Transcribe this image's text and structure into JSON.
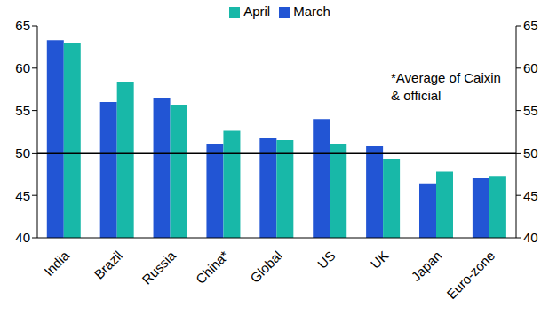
{
  "chart_data": {
    "type": "bar",
    "categories": [
      "India",
      "Brazil",
      "Russia",
      "China*",
      "Global",
      "US",
      "UK",
      "Japan",
      "Euro-zone"
    ],
    "series": [
      {
        "name": "March",
        "color": "#2255d4",
        "values": [
          63.3,
          56.0,
          56.5,
          51.1,
          51.8,
          54.0,
          50.8,
          46.4,
          47.0
        ]
      },
      {
        "name": "April",
        "color": "#18b8a8",
        "values": [
          62.9,
          58.4,
          55.7,
          52.6,
          51.5,
          51.1,
          49.3,
          47.8,
          47.3
        ]
      }
    ],
    "ylim": [
      40,
      65
    ],
    "yticks": [
      40,
      45,
      50,
      55,
      60,
      65
    ],
    "y2lim": [
      40,
      65
    ],
    "y2ticks": [
      40,
      45,
      50,
      55,
      60,
      65
    ],
    "reference_line": 50,
    "annotation": "*Average of Caixin & official",
    "legend": "top",
    "grid": false
  }
}
